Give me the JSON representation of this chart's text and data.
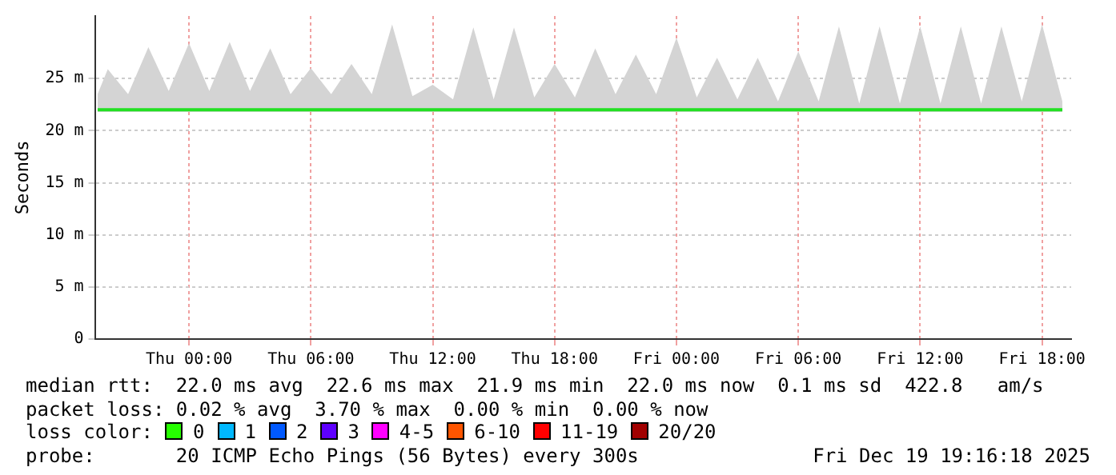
{
  "chart_data": {
    "type": "line",
    "ylabel": "Seconds",
    "xlim": [
      "2025-12-17T19:22",
      "2025-12-19T19:26"
    ],
    "xticks": [
      {
        "value": "2025-12-18T00:00",
        "label": "Thu 00:00"
      },
      {
        "value": "2025-12-18T06:00",
        "label": "Thu 06:00"
      },
      {
        "value": "2025-12-18T12:00",
        "label": "Thu 12:00"
      },
      {
        "value": "2025-12-18T18:00",
        "label": "Thu 18:00"
      },
      {
        "value": "2025-12-19T00:00",
        "label": "Fri 00:00"
      },
      {
        "value": "2025-12-19T06:00",
        "label": "Fri 06:00"
      },
      {
        "value": "2025-12-19T12:00",
        "label": "Fri 12:00"
      },
      {
        "value": "2025-12-19T18:00",
        "label": "Fri 18:00"
      }
    ],
    "ylim": [
      0,
      31
    ],
    "yticks": [
      0,
      {
        "value": 5,
        "label": "5 m"
      },
      {
        "value": 10,
        "label": "10 m"
      },
      {
        "value": 15,
        "label": "15 m"
      },
      {
        "value": 20,
        "label": "20 m"
      },
      {
        "value": 25,
        "label": "25 m"
      }
    ],
    "x": [
      "2025-12-17T19:30",
      "2025-12-17T20:00",
      "2025-12-17T21:00",
      "2025-12-17T22:00",
      "2025-12-17T23:00",
      "2025-12-18T00:00",
      "2025-12-18T01:00",
      "2025-12-18T02:00",
      "2025-12-18T03:00",
      "2025-12-18T04:00",
      "2025-12-18T05:00",
      "2025-12-18T06:00",
      "2025-12-18T07:00",
      "2025-12-18T08:00",
      "2025-12-18T09:00",
      "2025-12-18T10:00",
      "2025-12-18T11:00",
      "2025-12-18T12:00",
      "2025-12-18T13:00",
      "2025-12-18T14:00",
      "2025-12-18T15:00",
      "2025-12-18T16:00",
      "2025-12-18T17:00",
      "2025-12-18T18:00",
      "2025-12-18T19:00",
      "2025-12-18T20:00",
      "2025-12-18T21:00",
      "2025-12-18T22:00",
      "2025-12-18T23:00",
      "2025-12-19T00:00",
      "2025-12-19T01:00",
      "2025-12-19T02:00",
      "2025-12-19T03:00",
      "2025-12-19T04:00",
      "2025-12-19T05:00",
      "2025-12-19T06:00",
      "2025-12-19T07:00",
      "2025-12-19T08:00",
      "2025-12-19T09:00",
      "2025-12-19T10:00",
      "2025-12-19T11:00",
      "2025-12-19T12:00",
      "2025-12-19T13:00",
      "2025-12-19T14:00",
      "2025-12-19T15:00",
      "2025-12-19T16:00",
      "2025-12-19T17:00",
      "2025-12-19T18:00",
      "2025-12-19T19:00"
    ],
    "series": [
      {
        "color": "#22e022",
        "values": [
          22,
          22,
          22,
          22,
          22,
          22,
          22,
          22,
          22,
          22,
          22,
          22,
          22,
          22,
          22,
          22,
          22,
          22,
          22,
          22,
          22,
          22,
          22,
          22,
          22,
          22,
          22,
          22,
          22,
          22,
          22,
          22,
          22,
          22,
          22,
          22,
          22,
          22,
          22,
          22,
          22,
          22,
          22,
          22,
          22,
          22,
          22,
          22,
          22
        ],
        "lower": [
          21.8,
          21.8,
          21.8,
          21.8,
          21.8,
          21.8,
          21.8,
          21.8,
          21.8,
          21.8,
          21.8,
          21.8,
          21.8,
          21.8,
          21.8,
          21.8,
          21.8,
          21.8,
          21.8,
          21.8,
          21.8,
          21.8,
          21.8,
          21.8,
          21.8,
          21.8,
          21.8,
          21.8,
          21.8,
          21.8,
          21.8,
          21.8,
          21.8,
          21.8,
          21.8,
          21.8,
          21.8,
          21.8,
          21.8,
          21.8,
          21.8,
          21.8,
          21.8,
          21.8,
          21.8,
          21.8,
          21.8,
          21.8,
          21.8
        ],
        "upper": [
          23.5,
          25.9,
          23.5,
          28,
          23.8,
          28.4,
          23.8,
          28.5,
          23.8,
          27.9,
          23.5,
          26,
          23.5,
          26.4,
          23.5,
          30.2,
          23.3,
          24.4,
          23,
          29.9,
          23,
          29.9,
          23.2,
          26.4,
          23.2,
          27.9,
          23.5,
          27.3,
          23.5,
          28.9,
          23.2,
          27,
          23,
          27,
          22.8,
          27.6,
          22.8,
          30,
          22.6,
          30,
          22.6,
          30,
          22.6,
          30,
          22.6,
          30,
          22.8,
          30.2,
          22.8
        ]
      }
    ],
    "grid": true,
    "legend": false,
    "marker": "none",
    "line_style": "solid",
    "annotations": [
      "median rtt:  22.0 ms avg  22.6 ms max  21.9 ms min  22.0 ms now  0.1 ms sd  422.8   am/s",
      "packet loss: 0.02 % avg  3.70 % max  0.00 % min  0.00 % now",
      "loss color:",
      "0",
      "1",
      "2",
      "3",
      "4-5",
      "6-10",
      "11-19",
      "20/20",
      "probe:       20 ICMP Echo Pings (56 Bytes) every 300s",
      "Fri Dec 19 19:16:18 2025"
    ]
  }
}
